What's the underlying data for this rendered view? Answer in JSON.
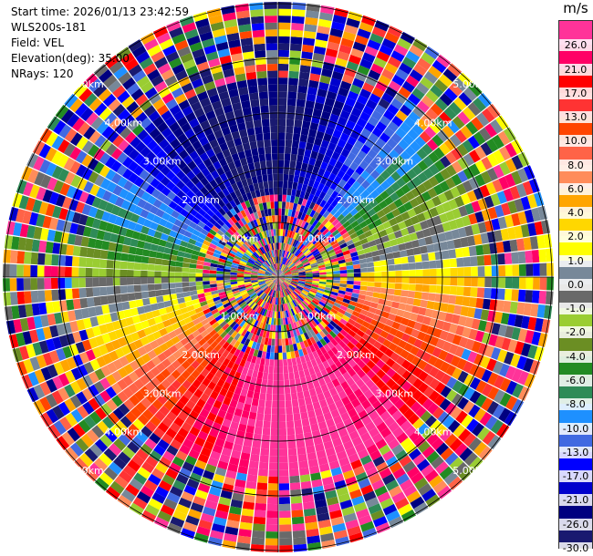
{
  "info": {
    "start_time": "Start time: 2026/01/13 23:42:59",
    "instrument": "WLS200s-181",
    "field": "Field: VEL",
    "elevation": "Elevation(deg): 35.00",
    "nrays": "NRays: 120"
  },
  "colorbar": {
    "unit": "m/s",
    "bins": [
      {
        "label": "26.0",
        "color": "#ff3399"
      },
      {
        "label": "21.0",
        "color": "#ff0066"
      },
      {
        "label": "17.0",
        "color": "#ff0000"
      },
      {
        "label": "13.0",
        "color": "#ff3333"
      },
      {
        "label": "10.0",
        "color": "#ff4500"
      },
      {
        "label": "8.0",
        "color": "#ff6347"
      },
      {
        "label": "6.0",
        "color": "#ff8c5a"
      },
      {
        "label": "4.0",
        "color": "#ffa500"
      },
      {
        "label": "2.0",
        "color": "#ffd700"
      },
      {
        "label": "1.0",
        "color": "#ffff00"
      },
      {
        "label": "0.0",
        "color": "#778899"
      },
      {
        "label": "-1.0",
        "color": "#696969"
      },
      {
        "label": "-2.0",
        "color": "#9acd32"
      },
      {
        "label": "-4.0",
        "color": "#6b8e23"
      },
      {
        "label": "-6.0",
        "color": "#228b22"
      },
      {
        "label": "-8.0",
        "color": "#2e8b57"
      },
      {
        "label": "-10.0",
        "color": "#1e90ff"
      },
      {
        "label": "-13.0",
        "color": "#4169e1"
      },
      {
        "label": "-17.0",
        "color": "#0000ff"
      },
      {
        "label": "-21.0",
        "color": "#0000cd"
      },
      {
        "label": "-26.0",
        "color": "#000080"
      },
      {
        "label": "-30.0",
        "color": "#191970"
      }
    ]
  },
  "rings": [
    {
      "label": "1.00km"
    },
    {
      "label": "2.00km"
    },
    {
      "label": "3.00km"
    },
    {
      "label": "4.00km"
    },
    {
      "label": "5.00km"
    }
  ]
}
